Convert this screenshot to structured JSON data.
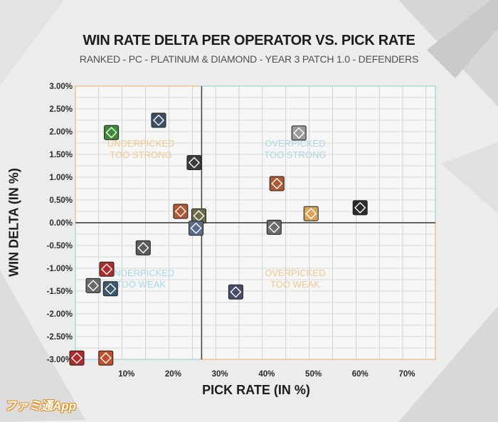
{
  "chart_data": {
    "type": "scatter",
    "title": "WIN RATE DELTA PER OPERATOR VS. PICK RATE",
    "subtitle": "RANKED - PC - PLATINUM & DIAMOND - YEAR 3 PATCH 1.0 - DEFENDERS",
    "xlabel": "PICK RATE (IN %)",
    "ylabel": "WIN DELTA (IN %)",
    "xlim": [
      0,
      77
    ],
    "ylim": [
      -3.0,
      3.0
    ],
    "x_ticks": [
      "10%",
      "20%",
      "30%",
      "40%",
      "50%",
      "60%",
      "70%"
    ],
    "x_tick_values": [
      10,
      20,
      30,
      40,
      50,
      60,
      70
    ],
    "y_ticks": [
      "3.00%",
      "2.50%",
      "2.00%",
      "1.50%",
      "1.00%",
      "0.50%",
      "0.00%",
      "-0.50%",
      "-1.00%",
      "-1.50%",
      "-2.00%",
      "-2.50%",
      "-3.00%"
    ],
    "y_tick_values": [
      3.0,
      2.5,
      2.0,
      1.5,
      1.0,
      0.5,
      0.0,
      -0.5,
      -1.0,
      -1.5,
      -2.0,
      -2.5,
      -3.0
    ],
    "divider_x": 27,
    "divider_y": 0,
    "grid": true,
    "quadrants": [
      {
        "line1": "UNDERPICKED",
        "line2": "TOO STRONG",
        "x": 14,
        "y": 1.55,
        "color": "#f0c890"
      },
      {
        "line1": "OVERPICKED",
        "line2": "TOO STRONG",
        "x": 47,
        "y": 1.55,
        "color": "#a8d8e4"
      },
      {
        "line1": "UNDERPICKED",
        "line2": "TOO WEAK",
        "x": 14,
        "y": -1.3,
        "color": "#a8d8e4"
      },
      {
        "line1": "OVERPICKED",
        "line2": "TOO WEAK",
        "x": 47,
        "y": -1.3,
        "color": "#f0c890"
      }
    ],
    "points": [
      {
        "x": 7.7,
        "y": 1.98,
        "color": "#3d8a35"
      },
      {
        "x": 17.8,
        "y": 2.25,
        "color": "#3c4e66"
      },
      {
        "x": 25.4,
        "y": 1.32,
        "color": "#3b3b3b"
      },
      {
        "x": 47.8,
        "y": 1.97,
        "color": "#9a9a9a"
      },
      {
        "x": 43.1,
        "y": 0.86,
        "color": "#b05a34"
      },
      {
        "x": 22.5,
        "y": 0.25,
        "color": "#b05a34"
      },
      {
        "x": 26.4,
        "y": 0.15,
        "color": "#6b6b4c"
      },
      {
        "x": 25.8,
        "y": -0.12,
        "color": "#5a6b8a"
      },
      {
        "x": 50.4,
        "y": 0.2,
        "color": "#d9a45a"
      },
      {
        "x": 60.9,
        "y": 0.33,
        "color": "#2b2b2b"
      },
      {
        "x": 42.5,
        "y": -0.1,
        "color": "#6a6a6a"
      },
      {
        "x": 14.5,
        "y": -0.55,
        "color": "#5b5b5b"
      },
      {
        "x": 6.7,
        "y": -1.02,
        "color": "#b02a2a"
      },
      {
        "x": 3.8,
        "y": -1.38,
        "color": "#6a6a6a"
      },
      {
        "x": 7.5,
        "y": -1.45,
        "color": "#3c5870"
      },
      {
        "x": 34.3,
        "y": -1.52,
        "color": "#4a4a6a"
      },
      {
        "x": 0.3,
        "y": -2.97,
        "color": "#b02a2a"
      },
      {
        "x": 6.5,
        "y": -2.97,
        "color": "#c0502a"
      }
    ]
  },
  "logo": "ファミ通App"
}
